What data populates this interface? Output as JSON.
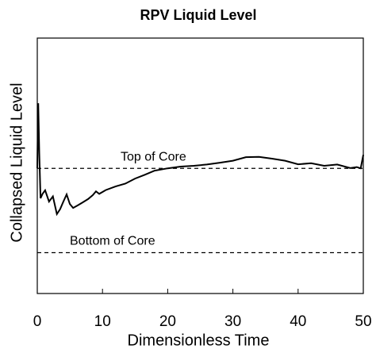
{
  "chart_data": {
    "type": "line",
    "title": "RPV Liquid Level",
    "xlabel": "Dimensionless Time",
    "ylabel": "Collapsed Liquid Level",
    "xlim": [
      0,
      50
    ],
    "xticks": [
      0,
      10,
      20,
      30,
      40,
      50
    ],
    "ylim": [
      0,
      1
    ],
    "series": [
      {
        "color": "#000000",
        "x": [
          0,
          0.15,
          0.3,
          0.5,
          0.8,
          1.2,
          1.8,
          2.4,
          3.0,
          3.5,
          4.0,
          4.5,
          5.0,
          5.5,
          6.2,
          7.0,
          7.8,
          8.5,
          9.0,
          9.5,
          10.5,
          12,
          13.5,
          15,
          16.5,
          18,
          20,
          22,
          24,
          26,
          28,
          30,
          32,
          34,
          36,
          38,
          40,
          42,
          44,
          46,
          48,
          49,
          49.6,
          50
        ],
        "values": [
          0.49,
          0.745,
          0.55,
          0.373,
          0.39,
          0.404,
          0.36,
          0.38,
          0.311,
          0.33,
          0.36,
          0.388,
          0.35,
          0.335,
          0.345,
          0.357,
          0.37,
          0.385,
          0.4,
          0.39,
          0.405,
          0.419,
          0.43,
          0.45,
          0.465,
          0.481,
          0.49,
          0.497,
          0.5,
          0.505,
          0.512,
          0.52,
          0.534,
          0.535,
          0.528,
          0.52,
          0.506,
          0.51,
          0.5,
          0.505,
          0.491,
          0.495,
          0.49,
          0.543
        ]
      }
    ],
    "reference_lines": [
      {
        "label": "Top of Core",
        "value": 0.49
      },
      {
        "label": "Bottom of Core",
        "value": 0.16
      }
    ]
  }
}
